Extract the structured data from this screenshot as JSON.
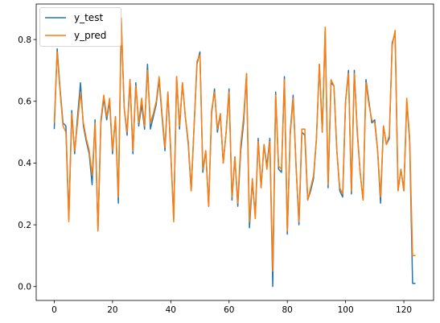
{
  "chart_data": {
    "type": "line",
    "title": "",
    "xlabel": "",
    "ylabel": "",
    "xlim": [
      -6.2,
      130.2
    ],
    "ylim": [
      -0.045,
      0.915
    ],
    "xticks": [
      0,
      20,
      40,
      60,
      80,
      100,
      120
    ],
    "yticks": [
      0.0,
      0.2,
      0.4,
      0.6,
      0.8
    ],
    "xtick_labels": [
      "0",
      "20",
      "40",
      "60",
      "80",
      "100",
      "120"
    ],
    "ytick_labels": [
      "0.0",
      "0.2",
      "0.4",
      "0.6",
      "0.8"
    ],
    "legend_position": "upper-left",
    "grid": false,
    "series": [
      {
        "name": "y_test",
        "color": "#1f77b4",
        "x": [
          0,
          1,
          2,
          3,
          4,
          5,
          6,
          7,
          8,
          9,
          10,
          11,
          12,
          13,
          14,
          15,
          16,
          17,
          18,
          19,
          20,
          21,
          22,
          23,
          24,
          25,
          26,
          27,
          28,
          29,
          30,
          31,
          32,
          33,
          34,
          35,
          36,
          37,
          38,
          39,
          40,
          41,
          42,
          43,
          44,
          45,
          46,
          47,
          48,
          49,
          50,
          51,
          52,
          53,
          54,
          55,
          56,
          57,
          58,
          59,
          60,
          61,
          62,
          63,
          64,
          65,
          66,
          67,
          68,
          69,
          70,
          71,
          72,
          73,
          74,
          75,
          76,
          77,
          78,
          79,
          80,
          81,
          82,
          83,
          84,
          85,
          86,
          87,
          88,
          89,
          90,
          91,
          92,
          93,
          94,
          95,
          96,
          97,
          98,
          99,
          100,
          101,
          102,
          103,
          104,
          105,
          106,
          107,
          108,
          109,
          110,
          111,
          112,
          113,
          114,
          115,
          116,
          117,
          118,
          119,
          120,
          121,
          122,
          123,
          124
        ],
        "values": [
          0.51,
          0.77,
          0.64,
          0.53,
          0.52,
          0.22,
          0.57,
          0.43,
          0.55,
          0.66,
          0.52,
          0.47,
          0.43,
          0.33,
          0.54,
          0.18,
          0.53,
          0.61,
          0.54,
          0.6,
          0.43,
          0.55,
          0.27,
          0.86,
          0.58,
          0.49,
          0.67,
          0.43,
          0.66,
          0.52,
          0.59,
          0.51,
          0.72,
          0.51,
          0.55,
          0.59,
          0.67,
          0.55,
          0.44,
          0.63,
          0.43,
          0.22,
          0.68,
          0.51,
          0.66,
          0.55,
          0.46,
          0.31,
          0.52,
          0.72,
          0.76,
          0.37,
          0.44,
          0.26,
          0.56,
          0.64,
          0.5,
          0.56,
          0.4,
          0.5,
          0.64,
          0.28,
          0.42,
          0.26,
          0.44,
          0.53,
          0.69,
          0.19,
          0.34,
          0.23,
          0.48,
          0.32,
          0.46,
          0.39,
          0.48,
          0.0,
          0.63,
          0.38,
          0.37,
          0.68,
          0.17,
          0.5,
          0.62,
          0.39,
          0.2,
          0.5,
          0.49,
          0.28,
          0.31,
          0.35,
          0.48,
          0.72,
          0.5,
          0.83,
          0.32,
          0.66,
          0.65,
          0.44,
          0.31,
          0.29,
          0.6,
          0.7,
          0.3,
          0.7,
          0.5,
          0.37,
          0.28,
          0.67,
          0.6,
          0.53,
          0.54,
          0.44,
          0.27,
          0.52,
          0.46,
          0.48,
          0.79,
          0.82,
          0.31,
          0.38,
          0.31,
          0.6,
          0.47,
          0.01,
          0.01
        ]
      },
      {
        "name": "y_pred",
        "color": "#ff7f0e",
        "x": [
          0,
          1,
          2,
          3,
          4,
          5,
          6,
          7,
          8,
          9,
          10,
          11,
          12,
          13,
          14,
          15,
          16,
          17,
          18,
          19,
          20,
          21,
          22,
          23,
          24,
          25,
          26,
          27,
          28,
          29,
          30,
          31,
          32,
          33,
          34,
          35,
          36,
          37,
          38,
          39,
          40,
          41,
          42,
          43,
          44,
          45,
          46,
          47,
          48,
          49,
          50,
          51,
          52,
          53,
          54,
          55,
          56,
          57,
          58,
          59,
          60,
          61,
          62,
          63,
          64,
          65,
          66,
          67,
          68,
          69,
          70,
          71,
          72,
          73,
          74,
          75,
          76,
          77,
          78,
          79,
          80,
          81,
          82,
          83,
          84,
          85,
          86,
          87,
          88,
          89,
          90,
          91,
          92,
          93,
          94,
          95,
          96,
          97,
          98,
          99,
          100,
          101,
          102,
          103,
          104,
          105,
          106,
          107,
          108,
          109,
          110,
          111,
          112,
          113,
          114,
          115,
          116,
          117,
          118,
          119,
          120,
          121,
          122,
          123,
          124
        ],
        "values": [
          0.53,
          0.76,
          0.63,
          0.52,
          0.5,
          0.21,
          0.56,
          0.44,
          0.53,
          0.63,
          0.53,
          0.48,
          0.44,
          0.36,
          0.53,
          0.18,
          0.54,
          0.62,
          0.55,
          0.61,
          0.44,
          0.55,
          0.29,
          0.87,
          0.58,
          0.5,
          0.67,
          0.44,
          0.65,
          0.53,
          0.61,
          0.52,
          0.7,
          0.53,
          0.56,
          0.6,
          0.68,
          0.56,
          0.45,
          0.63,
          0.44,
          0.21,
          0.68,
          0.52,
          0.66,
          0.55,
          0.47,
          0.31,
          0.52,
          0.73,
          0.75,
          0.38,
          0.44,
          0.26,
          0.57,
          0.63,
          0.51,
          0.56,
          0.4,
          0.5,
          0.63,
          0.29,
          0.42,
          0.27,
          0.46,
          0.55,
          0.69,
          0.21,
          0.35,
          0.22,
          0.47,
          0.32,
          0.46,
          0.38,
          0.47,
          0.05,
          0.62,
          0.39,
          0.38,
          0.67,
          0.18,
          0.49,
          0.61,
          0.39,
          0.21,
          0.51,
          0.51,
          0.28,
          0.32,
          0.36,
          0.48,
          0.72,
          0.5,
          0.84,
          0.33,
          0.67,
          0.65,
          0.44,
          0.32,
          0.3,
          0.6,
          0.69,
          0.31,
          0.69,
          0.51,
          0.37,
          0.28,
          0.66,
          0.59,
          0.54,
          0.53,
          0.44,
          0.29,
          0.52,
          0.46,
          0.49,
          0.78,
          0.83,
          0.31,
          0.38,
          0.31,
          0.61,
          0.48,
          0.1,
          0.1
        ]
      }
    ]
  }
}
